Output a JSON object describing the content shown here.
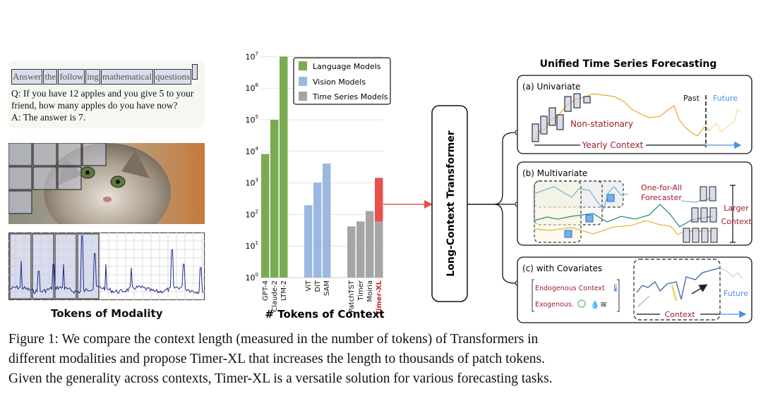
{
  "left": {
    "prompt_tokens": [
      "Answer",
      "the",
      "follow",
      "ing",
      "mathematical",
      "questions",
      ""
    ],
    "question": "Q: If you have 12 apples and you give 5 to your friend, how many apples do you have now?",
    "answer": "A: The answer is 7.",
    "title": "Tokens of Modality"
  },
  "chart_data": {
    "type": "bar",
    "title": "",
    "xlabel": "# Tokens of Context",
    "ylabel": "",
    "yscale": "log",
    "ylim": [
      1,
      10000000
    ],
    "ytick_labels": [
      "10",
      "10",
      "10",
      "10",
      "10",
      "10",
      "10",
      "10"
    ],
    "ytick_exponents": [
      "0",
      "1",
      "2",
      "3",
      "4",
      "5",
      "6",
      "7"
    ],
    "legend": {
      "placement": "top-right",
      "entries": [
        {
          "label": "Language Models",
          "color": "#7aab52"
        },
        {
          "label": "Vision Models",
          "color": "#9db8e0"
        },
        {
          "label": "Time Series Models",
          "color": "#a5a5a5"
        }
      ]
    },
    "categories": [
      "GPT-4",
      "Claude-2",
      "LTM-2",
      "ViT",
      "DiT",
      "SAM",
      "PatchTST",
      "Timer",
      "Moiria",
      "Timer-XL"
    ],
    "groups": [
      "Language Models",
      "Language Models",
      "Language Models",
      "Vision Models",
      "Vision Models",
      "Vision Models",
      "Time Series Models",
      "Time Series Models",
      "Time Series Models",
      "Time Series Models"
    ],
    "values": [
      8192,
      100000,
      10000000,
      196,
      1024,
      4096,
      42,
      60,
      128,
      1440
    ],
    "base_values": [
      null,
      null,
      null,
      null,
      null,
      null,
      null,
      null,
      null,
      60
    ],
    "highlight": {
      "category": "Timer-XL",
      "color": "#e8504a"
    }
  },
  "right": {
    "title": "Unified Time Series Forecasting",
    "transformer_label": "Long-Context Transformer",
    "panel_a": {
      "title": "(a) Univariate",
      "past": "Past",
      "future": "Future",
      "non_stationary": "Non-stationary",
      "context": "Yearly Context"
    },
    "panel_b": {
      "title": "(b) Multivariate",
      "forecaster_1": "One-for-All",
      "forecaster_2": "Forecaster",
      "larger_1": "Larger",
      "larger_2": "Context"
    },
    "panel_c": {
      "title": "(c) with Covariates",
      "endogenous": "Endogenous Context",
      "exogenous": "Exogenous.",
      "context": "Context",
      "future": "Future"
    }
  },
  "caption": [
    "Figure 1: We compare the context length (measured in the number of tokens) of Transformers in",
    "different modalities and propose Timer-XL that increases the length to thousands of patch tokens.",
    "Given the generality across contexts, Timer-XL is a versatile solution for various forecasting tasks."
  ]
}
